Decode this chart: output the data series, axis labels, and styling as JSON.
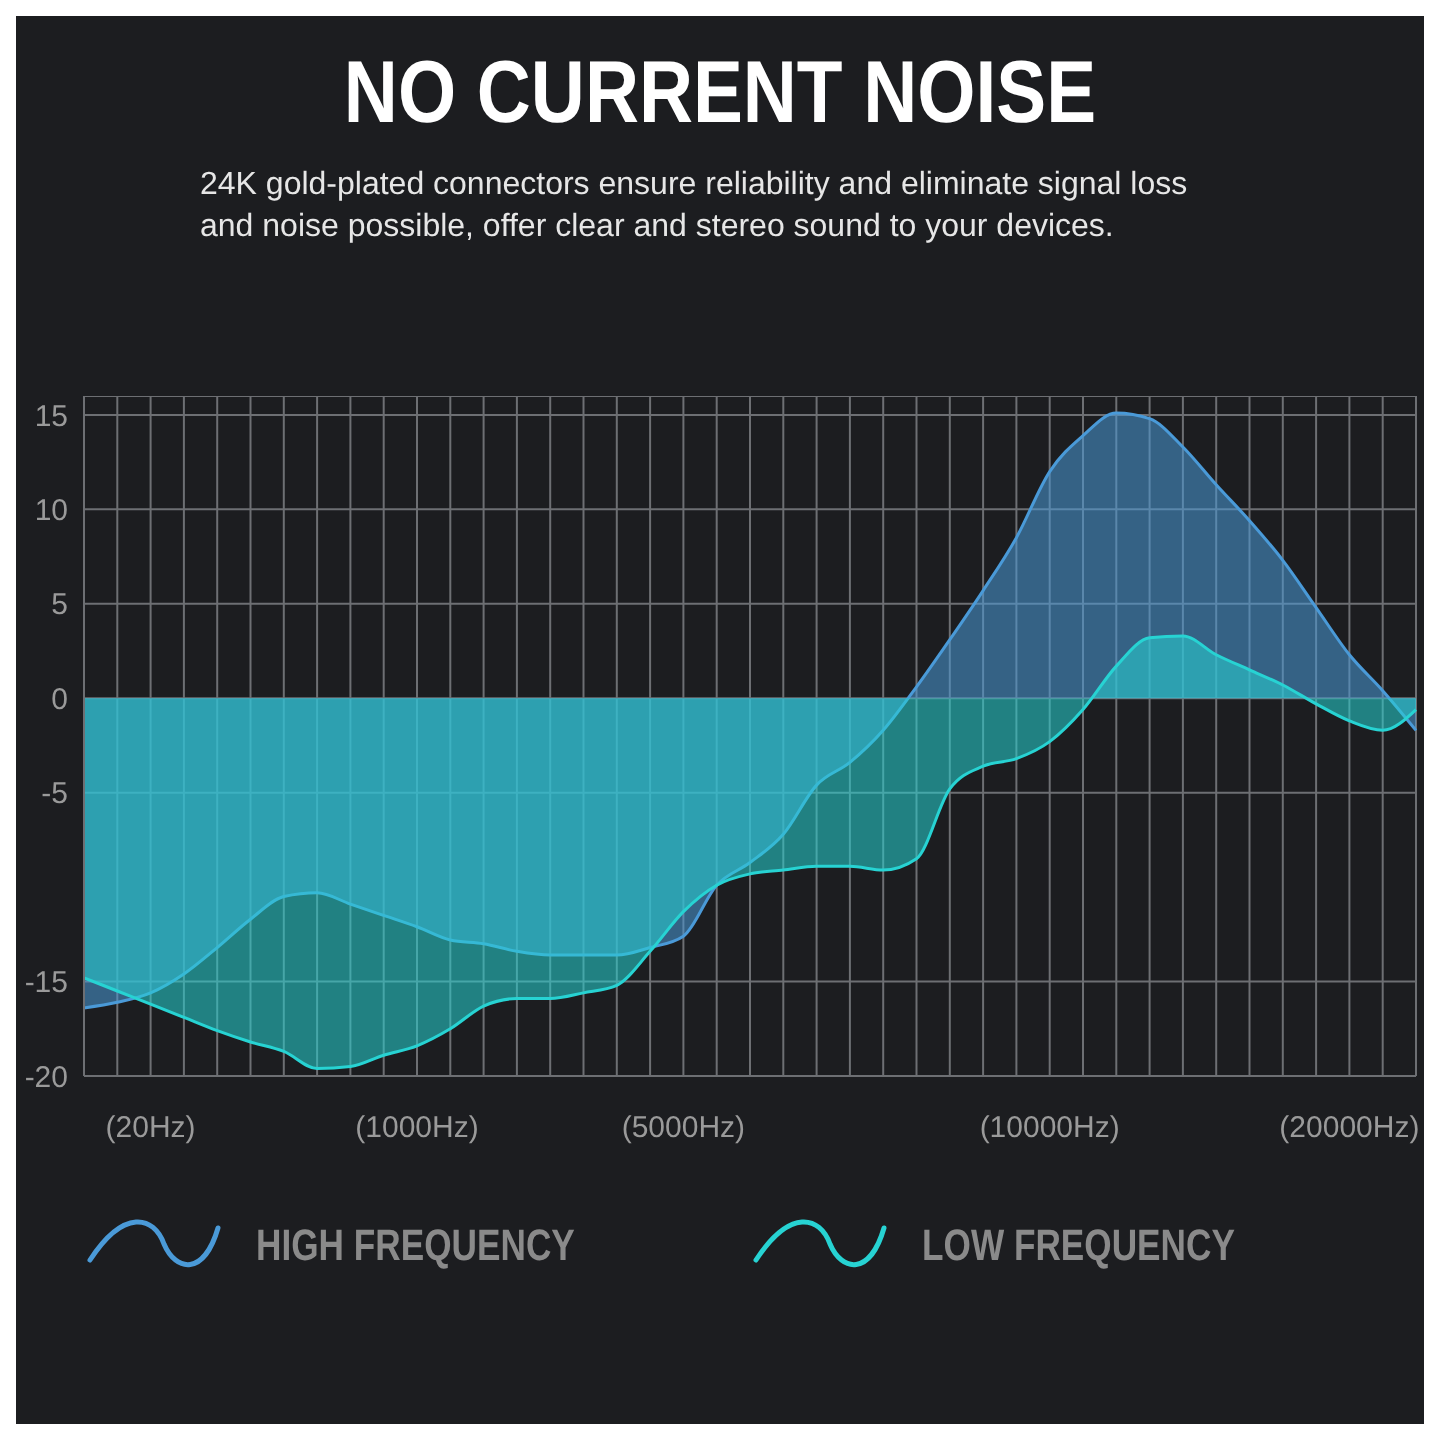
{
  "chart_data": {
    "type": "area",
    "title": "NO CURRENT NOISE",
    "subtitle": "24K gold-plated connectors ensure reliability and eliminate signal loss and noise possible, offer clear and stereo sound to your devices.",
    "categories": [
      null,
      null,
      "(20Hz)",
      null,
      null,
      null,
      null,
      null,
      null,
      null,
      "(1000Hz)",
      null,
      null,
      null,
      null,
      null,
      null,
      null,
      "(5000Hz)",
      null,
      null,
      null,
      null,
      null,
      null,
      null,
      null,
      null,
      null,
      "(10000Hz)",
      null,
      null,
      null,
      null,
      null,
      null,
      null,
      null,
      "(20000Hz)",
      null,
      null
    ],
    "series": [
      {
        "name": "HIGH FREQUENCY",
        "color": "#4a9ad8",
        "values": [
          -16.4,
          -16.1,
          -15.6,
          -14.6,
          -13.2,
          -11.7,
          -10.5,
          -10.3,
          -10.9,
          -11.5,
          -12.1,
          -12.8,
          -13,
          -13.4,
          -13.6,
          -13.6,
          -13.6,
          -13.2,
          -12.6,
          -9.9,
          -8.7,
          -7.2,
          -4.6,
          -3.4,
          -1.7,
          0.6,
          3.1,
          5.7,
          8.5,
          12,
          13.9,
          15.1,
          14.8,
          13.3,
          11.3,
          9.4,
          7.3,
          4.8,
          2.3,
          0.4,
          -1.7
        ]
      },
      {
        "name": "LOW FREQUENCY",
        "color": "#27d3d3",
        "values": [
          -14.8,
          -15.5,
          -16.2,
          -16.9,
          -17.6,
          -18.2,
          -18.7,
          -19.6,
          -19.5,
          -18.9,
          -18.4,
          -17.5,
          -16.3,
          -15.9,
          -15.9,
          -15.6,
          -15.2,
          -13.4,
          -11.3,
          -9.9,
          -9.3,
          -9.1,
          -8.9,
          -8.9,
          -9.1,
          -8.5,
          -4.8,
          -3.6,
          -3.2,
          -2.3,
          -0.6,
          1.7,
          3.2,
          3.3,
          2.3,
          1.5,
          0.7,
          -0.3,
          -1.2,
          -1.7,
          -0.6
        ]
      }
    ],
    "ylim": [
      -20,
      16
    ],
    "yticks": [
      15,
      10,
      5,
      0,
      -5,
      -15,
      -20
    ],
    "grid": true,
    "legend": "bottom"
  }
}
